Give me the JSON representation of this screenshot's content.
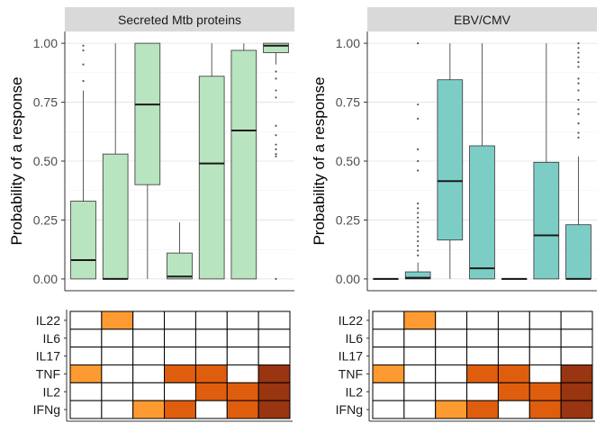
{
  "chart_data": [
    {
      "type": "boxplot",
      "title": "Secreted Mtb proteins",
      "ylabel": "Probability of a response",
      "ylim": [
        -0.05,
        1.05
      ],
      "yticks": [
        "0.00",
        "0.25",
        "0.50",
        "0.75",
        "1.00"
      ],
      "ytick_values": [
        0,
        0.25,
        0.5,
        0.75,
        1.0
      ],
      "grid": true,
      "box_color": "#b8e4bf",
      "boxes": [
        {
          "q1": 0.0,
          "median": 0.08,
          "q3": 0.33,
          "whisker_low": 0.0,
          "whisker_high": 0.8,
          "outliers": [
            0.84,
            0.91,
            0.97,
            0.99
          ]
        },
        {
          "q1": 0.0,
          "median": 0.0,
          "q3": 0.53,
          "whisker_low": 0.0,
          "whisker_high": 1.0,
          "outliers": []
        },
        {
          "q1": 0.4,
          "median": 0.74,
          "q3": 1.0,
          "whisker_low": 0.0,
          "whisker_high": 1.0,
          "outliers": []
        },
        {
          "q1": 0.0,
          "median": 0.01,
          "q3": 0.11,
          "whisker_low": 0.0,
          "whisker_high": 0.24,
          "outliers": []
        },
        {
          "q1": 0.0,
          "median": 0.49,
          "q3": 0.86,
          "whisker_low": 0.0,
          "whisker_high": 1.0,
          "outliers": []
        },
        {
          "q1": 0.0,
          "median": 0.63,
          "q3": 0.97,
          "whisker_low": 0.0,
          "whisker_high": 1.0,
          "outliers": []
        },
        {
          "q1": 0.96,
          "median": 0.99,
          "q3": 1.0,
          "whisker_low": 0.91,
          "whisker_high": 1.0,
          "outliers": [
            0.88,
            0.85,
            0.8,
            0.77,
            0.65,
            0.61,
            0.57,
            0.55,
            0.53,
            0.52,
            0.0
          ]
        }
      ]
    },
    {
      "type": "boxplot",
      "title": "EBV/CMV",
      "ylabel": "Probability of a response",
      "ylim": [
        -0.05,
        1.05
      ],
      "yticks": [
        "0.00",
        "0.25",
        "0.50",
        "0.75",
        "1.00"
      ],
      "ytick_values": [
        0,
        0.25,
        0.5,
        0.75,
        1.0
      ],
      "grid": true,
      "box_color": "#7dcdc7",
      "boxes": [
        {
          "q1": 0.0,
          "median": 0.0,
          "q3": 0.0,
          "whisker_low": 0.0,
          "whisker_high": 0.0,
          "outliers": []
        },
        {
          "q1": 0.0,
          "median": 0.005,
          "q3": 0.03,
          "whisker_low": 0.0,
          "whisker_high": 0.07,
          "outliers": [
            0.1,
            0.12,
            0.14,
            0.16,
            0.18,
            0.2,
            0.22,
            0.24,
            0.26,
            0.28,
            0.3,
            0.32,
            0.46,
            0.5,
            0.55,
            0.68,
            0.74,
            1.0
          ]
        },
        {
          "q1": 0.165,
          "median": 0.415,
          "q3": 0.845,
          "whisker_low": 0.0,
          "whisker_high": 1.0,
          "outliers": []
        },
        {
          "q1": 0.0,
          "median": 0.045,
          "q3": 0.565,
          "whisker_low": 0.0,
          "whisker_high": 1.0,
          "outliers": []
        },
        {
          "q1": 0.0,
          "median": 0.0,
          "q3": 0.0,
          "whisker_low": 0.0,
          "whisker_high": 0.0,
          "outliers": []
        },
        {
          "q1": 0.0,
          "median": 0.185,
          "q3": 0.495,
          "whisker_low": 0.0,
          "whisker_high": 1.0,
          "outliers": []
        },
        {
          "q1": 0.0,
          "median": 0.0,
          "q3": 0.23,
          "whisker_low": 0.0,
          "whisker_high": 0.52,
          "outliers": [
            0.6,
            0.62,
            0.66,
            0.7,
            0.72,
            0.76,
            0.8,
            0.83,
            0.85,
            0.9,
            0.92,
            0.94,
            0.96,
            0.98,
            1.0
          ]
        }
      ]
    },
    {
      "type": "heatmap",
      "rows": [
        "IL22",
        "IL6",
        "IL17",
        "TNF",
        "IL2",
        "IFNg"
      ],
      "columns": 7,
      "levels": {
        "0": "#ffffff",
        "1": "#fd9a31",
        "2": "#df5e0e",
        "3": "#993510"
      },
      "cells": [
        [
          0,
          1,
          0,
          0,
          0,
          0,
          0
        ],
        [
          0,
          0,
          0,
          0,
          0,
          0,
          0
        ],
        [
          0,
          0,
          0,
          0,
          0,
          0,
          0
        ],
        [
          1,
          0,
          0,
          2,
          2,
          0,
          3
        ],
        [
          0,
          0,
          0,
          0,
          2,
          2,
          3
        ],
        [
          0,
          0,
          1,
          2,
          0,
          2,
          3
        ]
      ]
    }
  ]
}
